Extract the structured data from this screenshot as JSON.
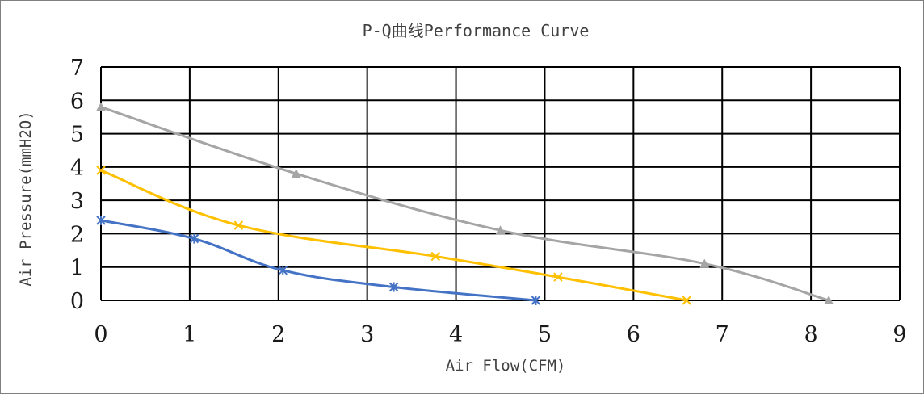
{
  "chart_data": {
    "type": "line",
    "title": "P-Q曲线Performance Curve",
    "xlabel": "Air Flow(CFM)",
    "ylabel": "Air Pressure(mmH2O)",
    "xlim": [
      0,
      9
    ],
    "ylim": [
      0,
      7
    ],
    "xticks": [
      "0",
      "1",
      "2",
      "3",
      "4",
      "5",
      "6",
      "7",
      "8",
      "9"
    ],
    "yticks": [
      "0",
      "1",
      "2",
      "3",
      "4",
      "5",
      "6",
      "7"
    ],
    "grid": true,
    "legend": "none",
    "series": [
      {
        "color": "#4472c4",
        "marker": "asterisk",
        "points": [
          [
            0,
            2.4
          ],
          [
            1.05,
            1.85
          ],
          [
            2.05,
            0.9
          ],
          [
            3.3,
            0.4
          ],
          [
            4.9,
            0.0
          ]
        ]
      },
      {
        "color": "#ffc000",
        "marker": "x",
        "points": [
          [
            0,
            3.9
          ],
          [
            1.55,
            2.25
          ],
          [
            3.77,
            1.32
          ],
          [
            5.15,
            0.7
          ],
          [
            6.6,
            0.0
          ]
        ]
      },
      {
        "color": "#a5a5a5",
        "marker": "triangle",
        "points": [
          [
            0,
            5.8
          ],
          [
            2.2,
            3.8
          ],
          [
            4.5,
            2.1
          ],
          [
            6.8,
            1.1
          ],
          [
            8.2,
            0.0
          ]
        ]
      }
    ]
  }
}
